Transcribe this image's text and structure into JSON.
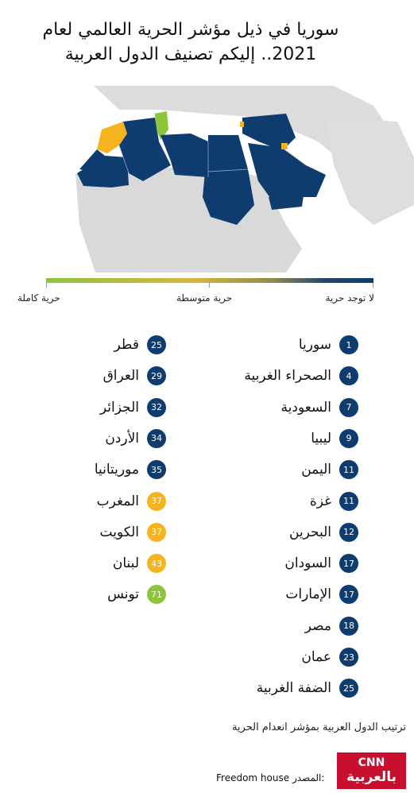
{
  "title": "سوريا في ذيل مؤشر الحرية العالمي لعام 2021.. إليكم تصنيف الدول العربية",
  "colors": {
    "no_freedom": "#0e3c6e",
    "partly_free": "#f5b41f",
    "free": "#8cc43c",
    "land": "#d9d9d9",
    "sea": "#ffffff"
  },
  "scale": {
    "right_label": "لا توجد حرية",
    "middle_label": "حرية متوسطة",
    "left_label": "حرية كاملة"
  },
  "rankings": [
    {
      "name": "سوريا",
      "score": 1,
      "status": "no_freedom"
    },
    {
      "name": "الصحراء الغربية",
      "score": 4,
      "status": "no_freedom"
    },
    {
      "name": "السعودية",
      "score": 7,
      "status": "no_freedom"
    },
    {
      "name": "ليبيا",
      "score": 9,
      "status": "no_freedom"
    },
    {
      "name": "اليمن",
      "score": 11,
      "status": "no_freedom"
    },
    {
      "name": "غزة",
      "score": 11,
      "status": "no_freedom"
    },
    {
      "name": "البحرين",
      "score": 12,
      "status": "no_freedom"
    },
    {
      "name": "السودان",
      "score": 17,
      "status": "no_freedom"
    },
    {
      "name": "الإمارات",
      "score": 17,
      "status": "no_freedom"
    },
    {
      "name": "مصر",
      "score": 18,
      "status": "no_freedom"
    },
    {
      "name": "عمان",
      "score": 23,
      "status": "no_freedom"
    },
    {
      "name": "الضفة الغربية",
      "score": 25,
      "status": "no_freedom"
    },
    {
      "name": "قطر",
      "score": 25,
      "status": "no_freedom"
    },
    {
      "name": "العراق",
      "score": 29,
      "status": "no_freedom"
    },
    {
      "name": "الجزائر",
      "score": 32,
      "status": "no_freedom"
    },
    {
      "name": "الأردن",
      "score": 34,
      "status": "no_freedom"
    },
    {
      "name": "موريتانيا",
      "score": 35,
      "status": "no_freedom"
    },
    {
      "name": "المغرب",
      "score": 37,
      "status": "partly_free"
    },
    {
      "name": "الكويت",
      "score": 37,
      "status": "partly_free"
    },
    {
      "name": "لبنان",
      "score": 43,
      "status": "partly_free"
    },
    {
      "name": "تونس",
      "score": 71,
      "status": "free"
    }
  ],
  "footer": {
    "note": "ترتيب الدول العربية بمؤشر انعدام الحرية",
    "source_label": "المصدر:",
    "source_name": "Freedom house"
  },
  "logo": {
    "line1": "CNN",
    "line2": "بالعربية"
  }
}
